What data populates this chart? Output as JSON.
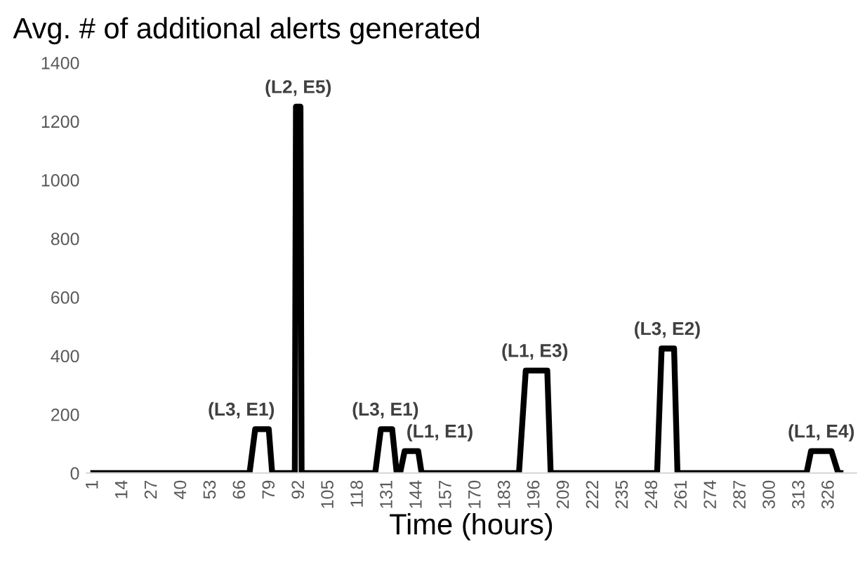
{
  "chart_data": {
    "type": "line",
    "title": "Avg. # of additional alerts generated",
    "xlabel": "Time (hours)",
    "series": [
      {
        "color": "#000000",
        "x": [
          1,
          70,
          72.5,
          78.5,
          80,
          90,
          90.5,
          92.5,
          93,
          125.5,
          128,
          133,
          135,
          136.5,
          138.5,
          144.5,
          146,
          189,
          192,
          201.5,
          203,
          250,
          252,
          257.5,
          259,
          316,
          318,
          327,
          330,
          331
        ],
        "values": [
          0,
          0,
          150,
          150,
          0,
          0,
          1250,
          1250,
          0,
          0,
          150,
          150,
          0,
          0,
          75,
          75,
          0,
          0,
          350,
          350,
          0,
          0,
          425,
          425,
          0,
          0,
          75,
          75,
          0,
          0
        ]
      }
    ],
    "annotations": [
      {
        "text": "(L3, E1)",
        "x": 75,
        "y": 150
      },
      {
        "text": "(L2, E5)",
        "x": 91.5,
        "y": 1250
      },
      {
        "text": "(L3, E1)",
        "x": 130,
        "y": 150
      },
      {
        "text": "(L1, E1)",
        "x": 142,
        "y": 75
      },
      {
        "text": "(L1, E3)",
        "x": 196,
        "y": 350
      },
      {
        "text": "(L3, E2)",
        "x": 254.5,
        "y": 425
      },
      {
        "text": "(L1, E4)",
        "x": 322.5,
        "y": 75
      }
    ],
    "xlim": [
      -2,
      338
    ],
    "xticks": [
      1,
      14,
      27,
      40,
      53,
      66,
      79,
      92,
      105,
      118,
      131,
      144,
      157,
      170,
      183,
      196,
      209,
      222,
      235,
      248,
      261,
      274,
      287,
      300,
      313,
      326
    ],
    "ylim": [
      0,
      1400
    ],
    "yticks": [
      0,
      200,
      400,
      600,
      800,
      1000,
      1200,
      1400
    ],
    "grid": false,
    "legend": false,
    "line_style": "solid",
    "marker": "none"
  }
}
